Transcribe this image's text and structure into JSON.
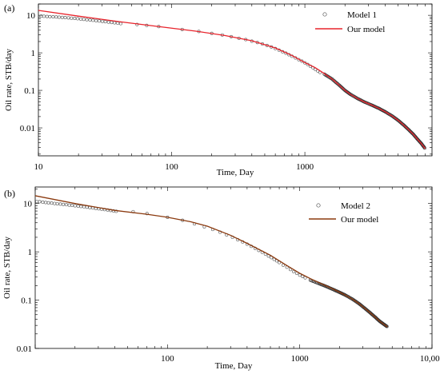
{
  "chart_data": [
    {
      "type": "scatter",
      "panel_label": "(a)",
      "xlabel": "Time, Day",
      "ylabel": "Oil rate, STB/day",
      "x_scale": "log",
      "y_scale": "log",
      "xlim": [
        10,
        9000
      ],
      "ylim": [
        0.0018,
        20
      ],
      "x_ticks": [
        {
          "value": 10,
          "label": "10"
        },
        {
          "value": 100,
          "label": "100"
        },
        {
          "value": 1000,
          "label": "1000"
        }
      ],
      "y_ticks": [
        {
          "value": 10,
          "label": "10"
        },
        {
          "value": 1,
          "label": "1"
        },
        {
          "value": 0.1,
          "label": "0.1"
        },
        {
          "value": 0.01,
          "label": "0.01"
        }
      ],
      "legend_position": "top-right",
      "series": [
        {
          "name": "Model 1",
          "kind": "markers",
          "color": "#555555",
          "x": [
            10.5,
            11,
            11.6,
            12.2,
            12.9,
            13.6,
            14.3,
            15.1,
            15.9,
            16.8,
            17.7,
            18.7,
            19.7,
            20.8,
            21.9,
            23.1,
            24.4,
            25.7,
            27.1,
            28.6,
            30.2,
            31.8,
            33.6,
            35.4,
            37.3,
            39.4,
            41.5,
            55,
            65,
            80,
            120,
            160,
            200,
            240,
            280,
            320,
            360,
            400,
            440,
            480,
            520,
            560,
            600,
            640,
            680,
            720,
            760,
            800,
            850,
            900,
            950,
            1000,
            1050,
            1100,
            1150,
            1200,
            1250,
            1300
          ],
          "y": [
            9.5,
            9.4,
            9.3,
            9.2,
            9.1,
            9.0,
            8.9,
            8.8,
            8.7,
            8.55,
            8.4,
            8.25,
            8.1,
            7.95,
            7.8,
            7.65,
            7.5,
            7.35,
            7.2,
            7.05,
            6.9,
            6.75,
            6.6,
            6.45,
            6.3,
            6.15,
            6.0,
            5.7,
            5.4,
            5.0,
            4.2,
            3.7,
            3.3,
            3.0,
            2.7,
            2.45,
            2.25,
            2.05,
            1.88,
            1.72,
            1.57,
            1.43,
            1.3,
            1.18,
            1.07,
            0.98,
            0.89,
            0.81,
            0.73,
            0.66,
            0.6,
            0.54,
            0.49,
            0.44,
            0.4,
            0.36,
            0.33,
            0.3
          ]
        },
        {
          "name": "Model 1 (dense)",
          "kind": "dense-markers",
          "color": "#333333",
          "x": [
            1400,
            1600,
            1800,
            2000,
            2200,
            2500,
            2800,
            3200,
            3600,
            4000,
            4500,
            5000,
            5500,
            6000,
            6500,
            7000,
            7500,
            8000
          ],
          "y": [
            0.27,
            0.2,
            0.14,
            0.1,
            0.078,
            0.06,
            0.049,
            0.04,
            0.033,
            0.027,
            0.021,
            0.016,
            0.012,
            0.009,
            0.0068,
            0.005,
            0.0038,
            0.0028
          ]
        },
        {
          "name": "Our model",
          "kind": "line",
          "color": "#e8242c",
          "x": [
            10,
            20,
            40,
            80,
            150,
            250,
            400,
            600,
            800,
            1000,
            1200,
            1400,
            1600,
            1800,
            2000,
            2200,
            2500,
            2800,
            3200,
            3600,
            4000,
            4500,
            5000,
            5500,
            6000,
            6500,
            7000,
            7500,
            8000
          ],
          "y": [
            13.5,
            9.5,
            6.8,
            5.0,
            3.8,
            2.9,
            2.1,
            1.35,
            0.85,
            0.55,
            0.4,
            0.28,
            0.2,
            0.14,
            0.1,
            0.078,
            0.06,
            0.049,
            0.04,
            0.033,
            0.027,
            0.021,
            0.016,
            0.012,
            0.009,
            0.0068,
            0.005,
            0.0038,
            0.0028
          ]
        }
      ]
    },
    {
      "type": "scatter",
      "panel_label": "(b)",
      "xlabel": "Time, Day",
      "ylabel": "Oil rate, STB/day",
      "x_scale": "log",
      "y_scale": "log",
      "xlim": [
        10,
        10000
      ],
      "ylim": [
        0.01,
        22
      ],
      "x_ticks": [
        {
          "value": 100,
          "label": "100"
        },
        {
          "value": 1000,
          "label": "1000"
        },
        {
          "value": 10000,
          "label": "10,000"
        }
      ],
      "y_ticks": [
        {
          "value": 10,
          "label": "10"
        },
        {
          "value": 1,
          "label": "1"
        },
        {
          "value": 0.1,
          "label": "0.1"
        },
        {
          "value": 0.01,
          "label": "0.01"
        }
      ],
      "legend_position": "top-right",
      "series": [
        {
          "name": "Model 2",
          "kind": "markers",
          "color": "#555555",
          "x": [
            10.3,
            10.8,
            11.4,
            12,
            12.6,
            13.3,
            14,
            14.7,
            15.5,
            16.3,
            17.2,
            18.1,
            19,
            20,
            21.1,
            22.2,
            23.4,
            24.6,
            25.9,
            27.3,
            28.7,
            30.2,
            31.8,
            33.5,
            35.3,
            37.2,
            39.1,
            41,
            55,
            70,
            100,
            130,
            160,
            190,
            220,
            250,
            280,
            310,
            340,
            370,
            400,
            430,
            460,
            490,
            520,
            550,
            580,
            610,
            640,
            670,
            700,
            750,
            800,
            850,
            900,
            950,
            1000,
            1050,
            1100
          ],
          "y": [
            11.0,
            10.9,
            10.7,
            10.5,
            10.35,
            10.2,
            10.05,
            9.9,
            9.75,
            9.6,
            9.45,
            9.3,
            9.15,
            9.0,
            8.85,
            8.7,
            8.55,
            8.4,
            8.25,
            8.1,
            7.95,
            7.8,
            7.65,
            7.5,
            7.35,
            7.2,
            7.05,
            6.9,
            6.8,
            6.2,
            5.2,
            4.5,
            3.8,
            3.3,
            2.9,
            2.55,
            2.25,
            2.0,
            1.78,
            1.6,
            1.44,
            1.3,
            1.18,
            1.07,
            0.98,
            0.9,
            0.82,
            0.76,
            0.7,
            0.65,
            0.6,
            0.53,
            0.48,
            0.43,
            0.39,
            0.36,
            0.33,
            0.31,
            0.29
          ]
        },
        {
          "name": "Model 2 (dense)",
          "kind": "dense-markers",
          "color": "#333333",
          "x": [
            1200,
            1400,
            1600,
            1800,
            2000,
            2200,
            2500,
            2800,
            3100,
            3400,
            3700,
            4000,
            4300,
            4600
          ],
          "y": [
            0.26,
            0.22,
            0.19,
            0.165,
            0.145,
            0.128,
            0.105,
            0.085,
            0.068,
            0.055,
            0.045,
            0.037,
            0.032,
            0.028
          ]
        },
        {
          "name": "Our model",
          "kind": "line",
          "color": "#8b3a0f",
          "x": [
            10,
            20,
            40,
            70,
            100,
            150,
            200,
            300,
            400,
            600,
            800,
            1000,
            1200,
            1400,
            1600,
            1800,
            2000,
            2200,
            2500,
            2800,
            3100,
            3400,
            3700,
            4000,
            4300,
            4600
          ],
          "y": [
            14.5,
            10,
            7.2,
            6.0,
            5.2,
            4.2,
            3.4,
            2.2,
            1.5,
            0.85,
            0.52,
            0.36,
            0.28,
            0.23,
            0.195,
            0.168,
            0.146,
            0.128,
            0.105,
            0.085,
            0.068,
            0.055,
            0.045,
            0.037,
            0.032,
            0.028
          ]
        }
      ]
    }
  ]
}
